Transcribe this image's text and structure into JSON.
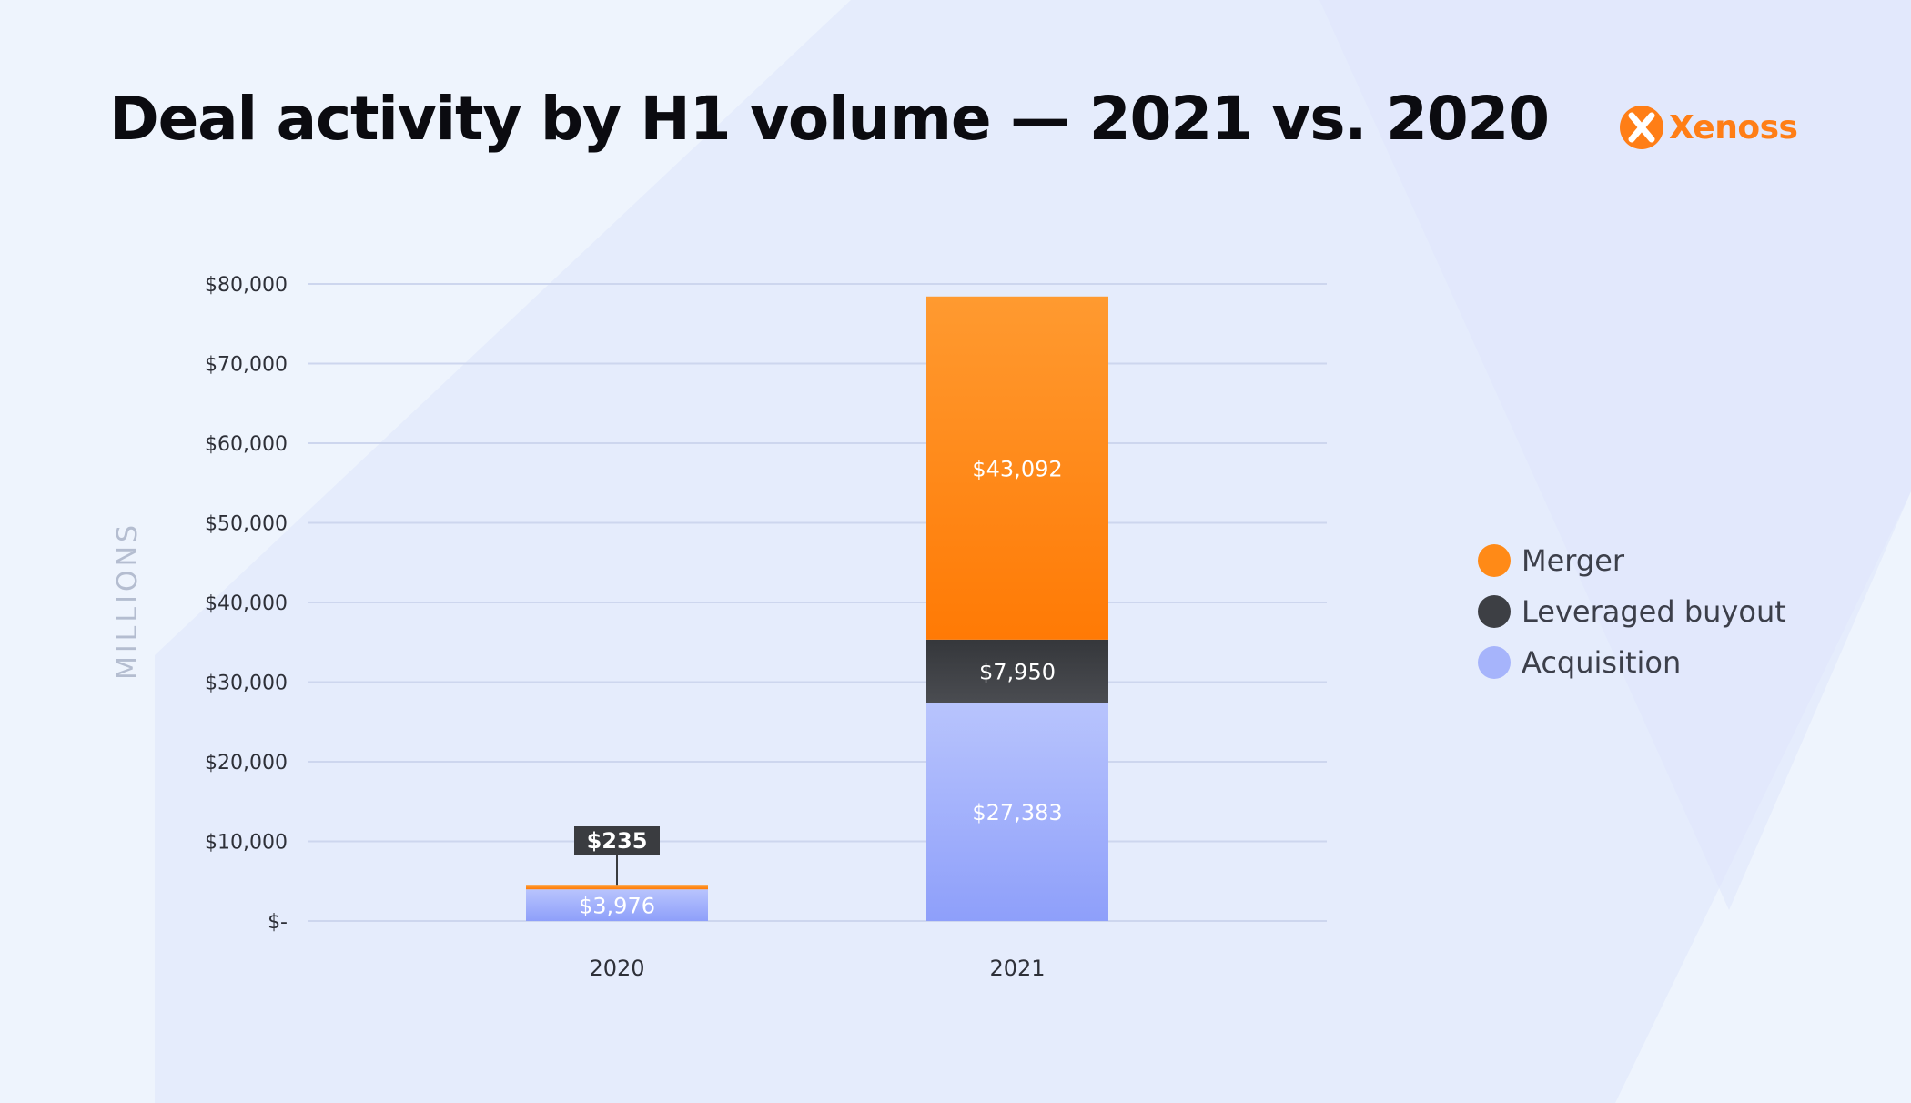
{
  "header": {
    "title": "Deal activity by H1 volume — 2021  vs. 2020",
    "brand": "Xenoss"
  },
  "colors": {
    "background": "#eef4fd",
    "brand": "#ff7e16",
    "merger": "#ff8f1f",
    "leveraged_buyout": "#3d3f44",
    "acquisition": "#9fb0fb"
  },
  "icons": {
    "brand_mark": "x-circle-logo-icon"
  },
  "chart_data": {
    "type": "bar",
    "stacked": true,
    "categories": [
      "2020",
      "2021"
    ],
    "series": [
      {
        "name": "Acquisition",
        "values": [
          3976,
          27383
        ],
        "labels": [
          "$3,976",
          "$27,383"
        ],
        "color": "#9fb0fb"
      },
      {
        "name": "Leveraged buyout",
        "values": [
          0,
          7950
        ],
        "labels": [
          "",
          "$7,950"
        ],
        "color": "#3d3f44"
      },
      {
        "name": "Merger",
        "values": [
          235,
          43092
        ],
        "labels": [
          "$235",
          "$43,092"
        ],
        "color": "#ff8f1f"
      }
    ],
    "ylabel": "MILLIONS",
    "ylim": [
      0,
      80000
    ],
    "yticks": [
      0,
      10000,
      20000,
      30000,
      40000,
      50000,
      60000,
      70000,
      80000
    ],
    "ytick_labels": [
      "$-",
      "$10,000",
      "$20,000",
      "$30,000",
      "$40,000",
      "$50,000",
      "$60,000",
      "$70,000",
      "$80,000"
    ],
    "grid": true,
    "legend": {
      "position": "right",
      "order": [
        "Merger",
        "Leveraged buyout",
        "Acquisition"
      ]
    }
  }
}
